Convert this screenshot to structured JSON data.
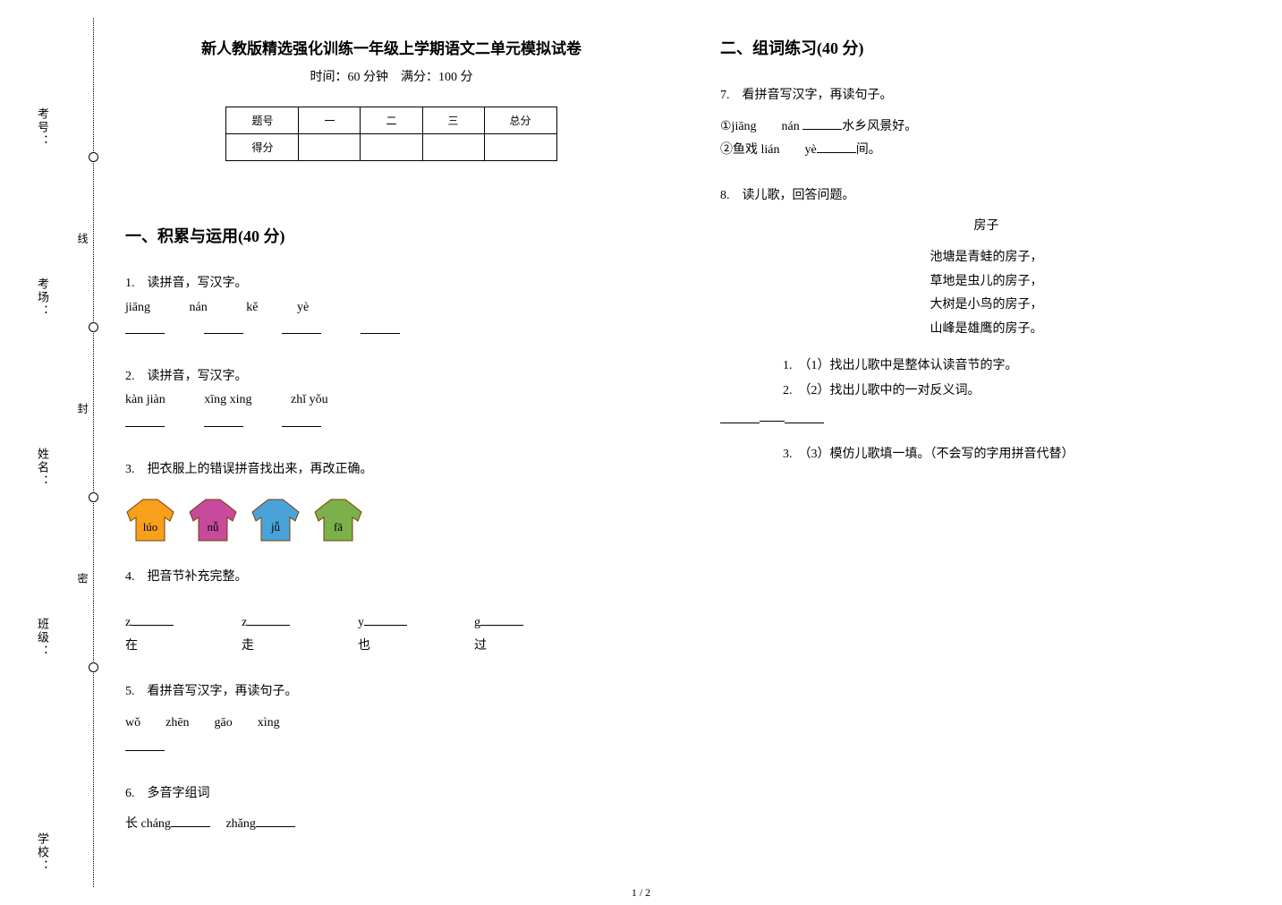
{
  "binding": {
    "labels": [
      "考号：",
      "考场：",
      "姓名：",
      "班级：",
      "学校："
    ],
    "cut_labels": [
      "线",
      "封",
      "密"
    ],
    "circle_top_positions": [
      170,
      360,
      550,
      740
    ],
    "label_top_positions": [
      120,
      310,
      500,
      690,
      930
    ],
    "cut_top_positions": [
      260,
      450,
      640
    ]
  },
  "header": {
    "title": "新人教版精选强化训练一年级上学期语文二单元模拟试卷",
    "subtitle": "时间：60 分钟　满分：100 分"
  },
  "score_table": {
    "row1": [
      "题号",
      "一",
      "二",
      "三",
      "总分"
    ],
    "row2_label": "得分"
  },
  "section1": {
    "heading": "一、积累与运用(40 分)"
  },
  "q1": {
    "prompt": "1.　读拼音，写汉字。",
    "pinyin": [
      "jiāng",
      "nán",
      "kě",
      "yè"
    ]
  },
  "q2": {
    "prompt": "2.　读拼音，写汉字。",
    "pinyin": [
      "kàn jiàn",
      "xīng xing",
      "zhǐ yǒu"
    ]
  },
  "q3": {
    "prompt": "3.　把衣服上的错误拼音找出来，再改正确。",
    "shirts": [
      {
        "label": "lúo",
        "fill": "#f7a01c",
        "text_color": "#000000"
      },
      {
        "label": "nǚ",
        "fill": "#c74a9c",
        "text_color": "#000000"
      },
      {
        "label": "jǚ",
        "fill": "#4aa3d8",
        "text_color": "#000000"
      },
      {
        "label": "fā",
        "fill": "#7bb04a",
        "text_color": "#000000"
      }
    ]
  },
  "q4": {
    "prompt": "4.　把音节补充完整。",
    "items": [
      {
        "initial": "z",
        "char": "在"
      },
      {
        "initial": "z",
        "char": "走"
      },
      {
        "initial": "y",
        "char": "也"
      },
      {
        "initial": "g",
        "char": "过"
      }
    ]
  },
  "q5": {
    "prompt": "5.　看拼音写汉字，再读句子。",
    "line": "wǒ　　zhēn　　gāo　　xìng"
  },
  "q6": {
    "prompt": "6.　多音字组词",
    "line_prefix": "长 cháng",
    "line_mid": "zhǎng"
  },
  "section2": {
    "heading": "二、组词练习(40 分)"
  },
  "q7": {
    "prompt": "7.　看拼音写汉字，再读句子。",
    "l1_a": "①jiāng　　nán ",
    "l1_b": "水乡风景好。",
    "l2_a": "②鱼戏 lián　　yè",
    "l2_b": "间。"
  },
  "q8": {
    "prompt": "8.　读儿歌，回答问题。",
    "poem_title": "房子",
    "poem_lines": [
      "池塘是青蛙的房子，",
      "草地是虫儿的房子，",
      "大树是小鸟的房子，",
      "山峰是雄鹰的房子。"
    ],
    "sub": [
      "1.　（1）找出儿歌中是整体认读音节的字。",
      "2.　（2）找出儿歌中的一对反义词。",
      "3.　（3）模仿儿歌填一填。（不会写的字用拼音代替）"
    ]
  },
  "page_num": "1 / 2"
}
